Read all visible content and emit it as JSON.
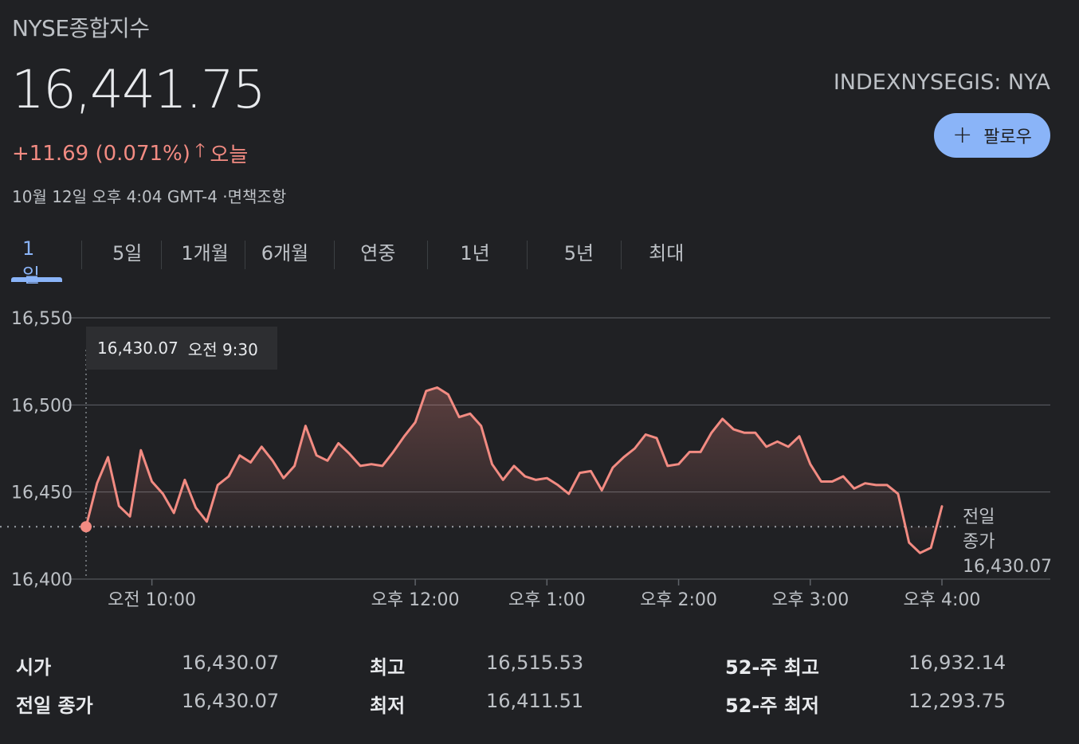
{
  "header": {
    "title": "NYSE종합지수",
    "price": "16,441.75",
    "change": "+11.69 (0.071%)",
    "change_arrow": "🡑",
    "change_period": "오늘",
    "timestamp": "10월 12일 오후 4:04 GMT-4 ·면책조항",
    "ticker": "INDEXNYSEGIS: NYA",
    "follow_label": "팔로우",
    "follow_icon": "+"
  },
  "tabs": [
    "1일",
    "5일",
    "1개월",
    "6개월",
    "연중",
    "1년",
    "5년",
    "최대"
  ],
  "active_tab": 0,
  "colors": {
    "background": "#202124",
    "line": "#f28b82",
    "accent": "#8ab4f8",
    "grid": "#5f6368"
  },
  "tooltip": {
    "value": "16,430.07",
    "time": "오전 9:30"
  },
  "prev_close_label": [
    "전일",
    "종가",
    "16,430.07"
  ],
  "chart_data": {
    "type": "line",
    "ylim": [
      16400,
      16550
    ],
    "y_ticks": [
      16550,
      16500,
      16450,
      16400
    ],
    "y_tick_labels": [
      "16,550",
      "16,500",
      "16,450",
      "16,400"
    ],
    "x_ticks": [
      {
        "minutes": 30,
        "label": "오전 10:00"
      },
      {
        "minutes": 150,
        "label": "오후 12:00"
      },
      {
        "minutes": 210,
        "label": "오후 1:00"
      },
      {
        "minutes": 270,
        "label": "오후 2:00"
      },
      {
        "minutes": 330,
        "label": "오후 3:00"
      },
      {
        "minutes": 390,
        "label": "오후 4:00"
      }
    ],
    "x_domain_minutes": [
      0,
      390
    ],
    "reference_line": 16430.07,
    "series": [
      {
        "values": [
          16430.07,
          16455,
          16470,
          16442,
          16436,
          16474,
          16456,
          16449,
          16438,
          16457,
          16441,
          16433,
          16454,
          16459,
          16471,
          16467,
          16476,
          16468,
          16458,
          16465,
          16488,
          16471,
          16468,
          16478,
          16472,
          16465,
          16466,
          16465,
          16473,
          16482,
          16490,
          16508,
          16510,
          16506,
          16493,
          16495,
          16488,
          16466,
          16457,
          16465,
          16459,
          16457,
          16458,
          16454,
          16449,
          16461,
          16462,
          16451,
          16464,
          16470,
          16475,
          16483,
          16481,
          16465,
          16466,
          16473,
          16473,
          16484,
          16492,
          16486,
          16484,
          16484,
          16476,
          16479,
          16476,
          16482,
          16466,
          16456,
          16456,
          16459,
          16452,
          16455,
          16454,
          16454,
          16449,
          16421,
          16415,
          16418,
          16441.75
        ]
      }
    ]
  },
  "stats": [
    {
      "label": "시가",
      "value": "16,430.07"
    },
    {
      "label": "최고",
      "value": "16,515.53"
    },
    {
      "label": "52-주 최고",
      "value": "16,932.14"
    },
    {
      "label": "전일 종가",
      "value": "16,430.07"
    },
    {
      "label": "최저",
      "value": "16,411.51"
    },
    {
      "label": "52-주 최저",
      "value": "12,293.75"
    }
  ]
}
